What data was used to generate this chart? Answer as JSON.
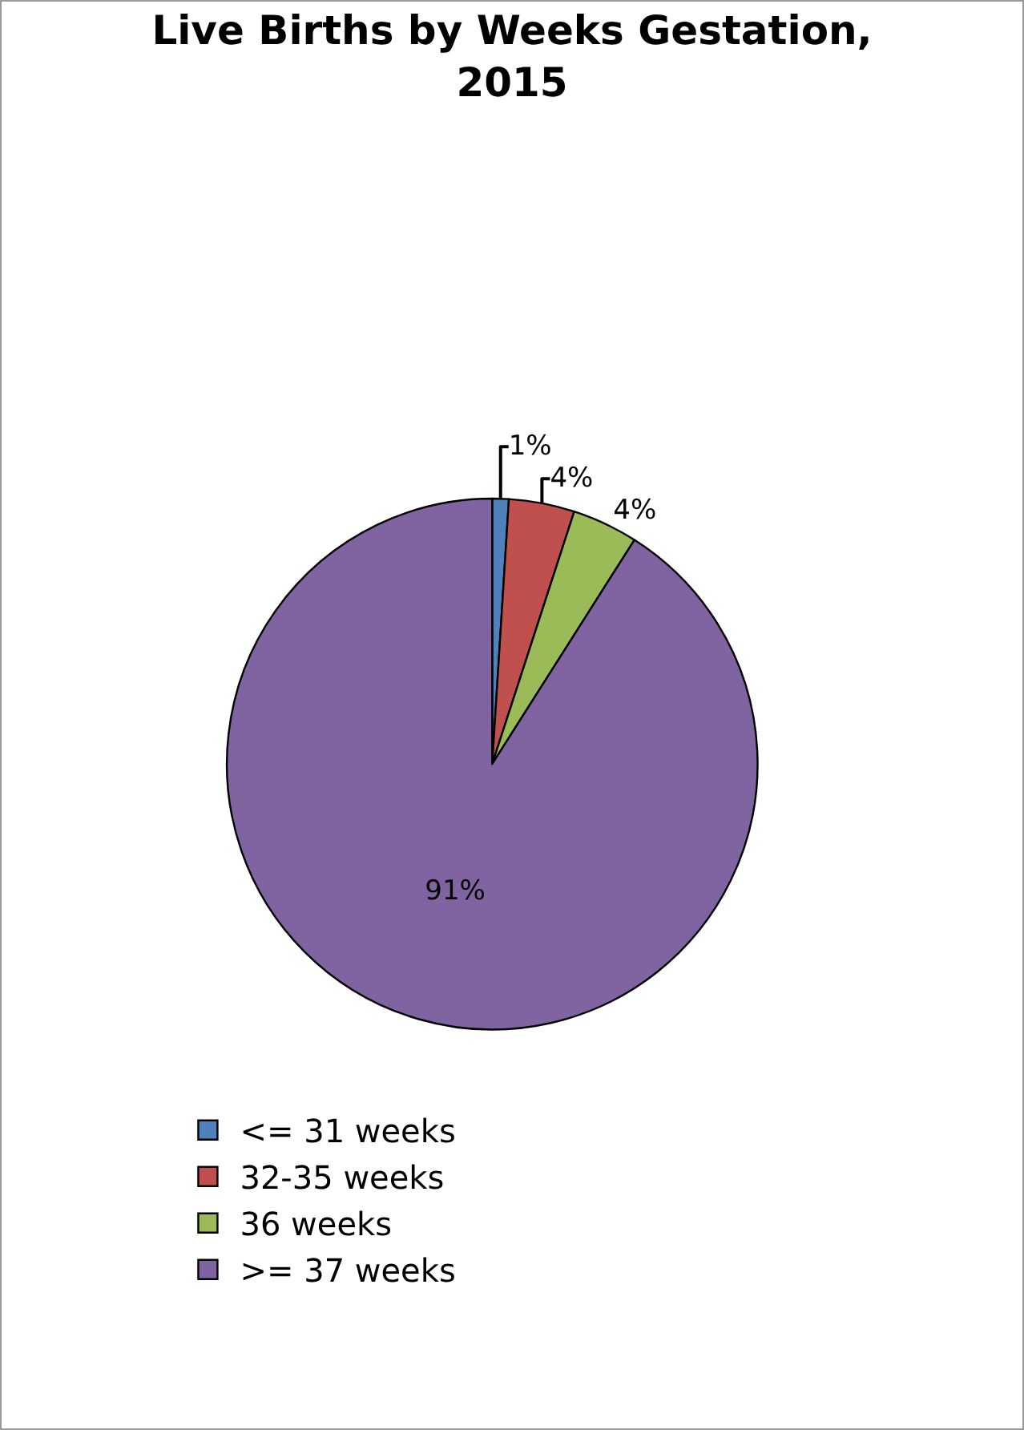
{
  "chart_data": {
    "type": "pie",
    "title": "Live Births by Weeks Gestation, 2015",
    "categories": [
      "<= 31 weeks",
      "32-35 weeks",
      "36 weeks",
      ">= 37 weeks"
    ],
    "values": [
      1,
      4,
      4,
      91
    ],
    "colors": [
      "#4f81bd",
      "#c0504d",
      "#9bbb59",
      "#8064a2"
    ],
    "value_labels": [
      "1%",
      "4%",
      "4%",
      "91%"
    ],
    "legend": "bottom"
  }
}
